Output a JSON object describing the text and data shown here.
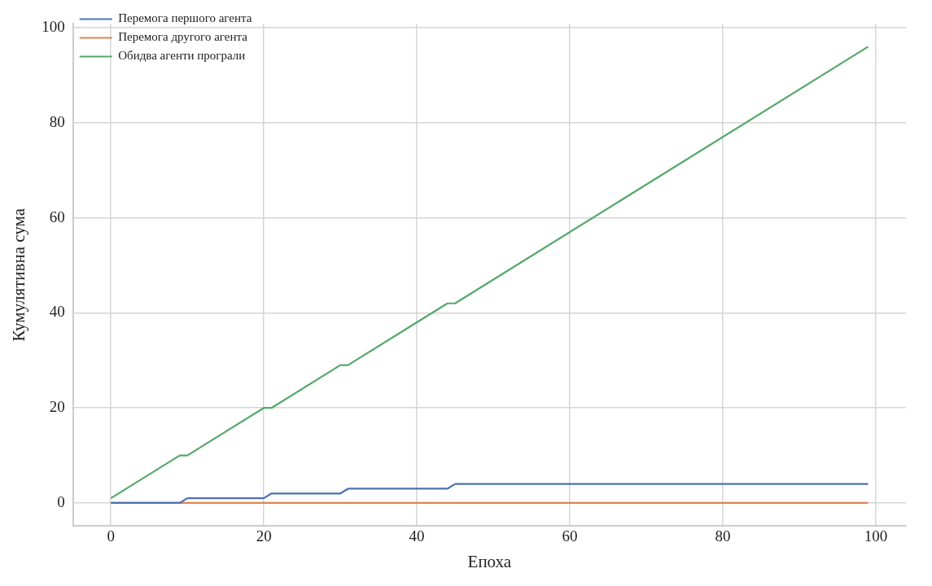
{
  "chart_data": {
    "type": "line",
    "xlabel": "Епоха",
    "ylabel": "Кумулятивна сума",
    "xlim": [
      -4.95,
      103.95
    ],
    "ylim": [
      -4.8,
      100.8
    ],
    "xticks": [
      0,
      20,
      40,
      60,
      80,
      100
    ],
    "yticks": [
      0,
      20,
      40,
      60,
      80,
      100
    ],
    "grid": true,
    "legend": "top left",
    "marker": "none",
    "line_style": "solid",
    "series": [
      {
        "name": "Перемога першого агента",
        "color": "#4c72b0",
        "x": [
          0,
          9,
          10,
          20,
          21,
          30,
          31,
          44,
          45,
          99
        ],
        "values": [
          0,
          0,
          1,
          1,
          2,
          2,
          3,
          3,
          4,
          4
        ]
      },
      {
        "name": "Перемога другого агента",
        "color": "#dd8452",
        "x": [
          0,
          99
        ],
        "values": [
          0,
          0
        ]
      },
      {
        "name": "Обидва агенти програли",
        "color": "#55a868",
        "x": [
          0,
          9,
          10,
          20,
          21,
          30,
          31,
          44,
          45,
          99
        ],
        "values": [
          1,
          10,
          10,
          20,
          20,
          29,
          29,
          42,
          42,
          96
        ]
      }
    ]
  }
}
